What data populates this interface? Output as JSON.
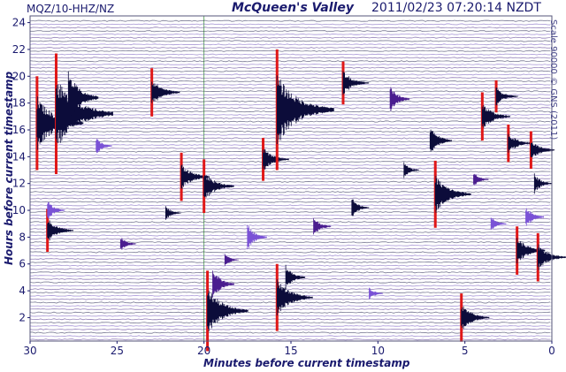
{
  "header": {
    "station": "MQZ/10-HHZ/NZ",
    "title": "McQueen's Valley",
    "timestamp": "2011/02/23 07:20:14 NZDT"
  },
  "side_note": "Scale 90000 © GNS (2011)",
  "colors": {
    "axis_text": "#1a1a6e",
    "grid": "#b8b8c8",
    "trace_cycle": [
      "#4a1d8f",
      "#7a52d6",
      "#0c0c3a"
    ],
    "clipped": "#e01818",
    "minute_marker": "#4a9a4a"
  },
  "chart_data": {
    "type": "line",
    "xlabel": "Minutes before current timestamp",
    "ylabel": "Hours before current timestamp",
    "xlim": [
      30,
      0
    ],
    "ylim": [
      0.25,
      24.5
    ],
    "x_ticks": [
      30,
      25,
      20,
      15,
      10,
      5,
      0
    ],
    "y_ticks": [
      2,
      4,
      6,
      8,
      10,
      12,
      14,
      16,
      18,
      20,
      22,
      24
    ],
    "trace_count": 96,
    "trace_interval_hours": 0.25,
    "minute_marker_at": 20,
    "events": [
      {
        "minute": 29.6,
        "hours": 16.5,
        "amp": 3.5,
        "clipped": true
      },
      {
        "minute": 28.5,
        "hours": 17.2,
        "amp": 4.5,
        "clipped": true
      },
      {
        "minute": 27.8,
        "hours": 18.4,
        "amp": 2.0,
        "clipped": false
      },
      {
        "minute": 29.0,
        "hours": 8.5,
        "amp": 1.6,
        "clipped": true
      },
      {
        "minute": 29.0,
        "hours": 10.0,
        "amp": 0.8,
        "clipped": false
      },
      {
        "minute": 23.0,
        "hours": 18.8,
        "amp": 1.8,
        "clipped": true
      },
      {
        "minute": 21.3,
        "hours": 12.5,
        "amp": 1.8,
        "clipped": true
      },
      {
        "minute": 20.0,
        "hours": 11.8,
        "amp": 2.0,
        "clipped": true
      },
      {
        "minute": 19.8,
        "hours": 2.5,
        "amp": 3.0,
        "clipped": true
      },
      {
        "minute": 19.5,
        "hours": 4.5,
        "amp": 1.2,
        "clipped": false
      },
      {
        "minute": 17.5,
        "hours": 8.0,
        "amp": 1.0,
        "clipped": false
      },
      {
        "minute": 16.6,
        "hours": 13.8,
        "amp": 1.6,
        "clipped": true
      },
      {
        "minute": 15.8,
        "hours": 17.5,
        "amp": 4.5,
        "clipped": true
      },
      {
        "minute": 15.8,
        "hours": 3.5,
        "amp": 2.5,
        "clipped": true
      },
      {
        "minute": 15.3,
        "hours": 5.0,
        "amp": 1.0,
        "clipped": false
      },
      {
        "minute": 13.7,
        "hours": 8.8,
        "amp": 0.8,
        "clipped": false
      },
      {
        "minute": 12.0,
        "hours": 19.5,
        "amp": 1.6,
        "clipped": true
      },
      {
        "minute": 11.5,
        "hours": 10.2,
        "amp": 0.8,
        "clipped": false
      },
      {
        "minute": 9.3,
        "hours": 18.3,
        "amp": 1.0,
        "clipped": false
      },
      {
        "minute": 6.7,
        "hours": 11.2,
        "amp": 2.5,
        "clipped": true
      },
      {
        "minute": 7.0,
        "hours": 15.2,
        "amp": 1.2,
        "clipped": false
      },
      {
        "minute": 5.2,
        "hours": 2.0,
        "amp": 1.8,
        "clipped": true
      },
      {
        "minute": 4.0,
        "hours": 17.0,
        "amp": 1.8,
        "clipped": true
      },
      {
        "minute": 3.2,
        "hours": 18.5,
        "amp": 1.2,
        "clipped": true
      },
      {
        "minute": 2.5,
        "hours": 15.0,
        "amp": 1.4,
        "clipped": true
      },
      {
        "minute": 2.0,
        "hours": 7.0,
        "amp": 1.8,
        "clipped": true
      },
      {
        "minute": 1.2,
        "hours": 14.5,
        "amp": 1.4,
        "clipped": true
      },
      {
        "minute": 0.8,
        "hours": 6.5,
        "amp": 1.8,
        "clipped": true
      },
      {
        "minute": 1.5,
        "hours": 9.5,
        "amp": 0.9,
        "clipped": false
      },
      {
        "minute": 1.0,
        "hours": 12.0,
        "amp": 0.8,
        "clipped": false
      },
      {
        "minute": 24.8,
        "hours": 7.5,
        "amp": 0.6,
        "clipped": false
      },
      {
        "minute": 26.2,
        "hours": 14.8,
        "amp": 0.7,
        "clipped": false
      },
      {
        "minute": 22.2,
        "hours": 9.8,
        "amp": 0.6,
        "clipped": false
      },
      {
        "minute": 18.8,
        "hours": 6.3,
        "amp": 0.5,
        "clipped": false
      },
      {
        "minute": 10.5,
        "hours": 3.8,
        "amp": 0.5,
        "clipped": false
      },
      {
        "minute": 8.5,
        "hours": 13.0,
        "amp": 0.6,
        "clipped": false
      },
      {
        "minute": 4.5,
        "hours": 12.3,
        "amp": 0.6,
        "clipped": false
      },
      {
        "minute": 3.5,
        "hours": 9.0,
        "amp": 0.6,
        "clipped": false
      }
    ]
  }
}
